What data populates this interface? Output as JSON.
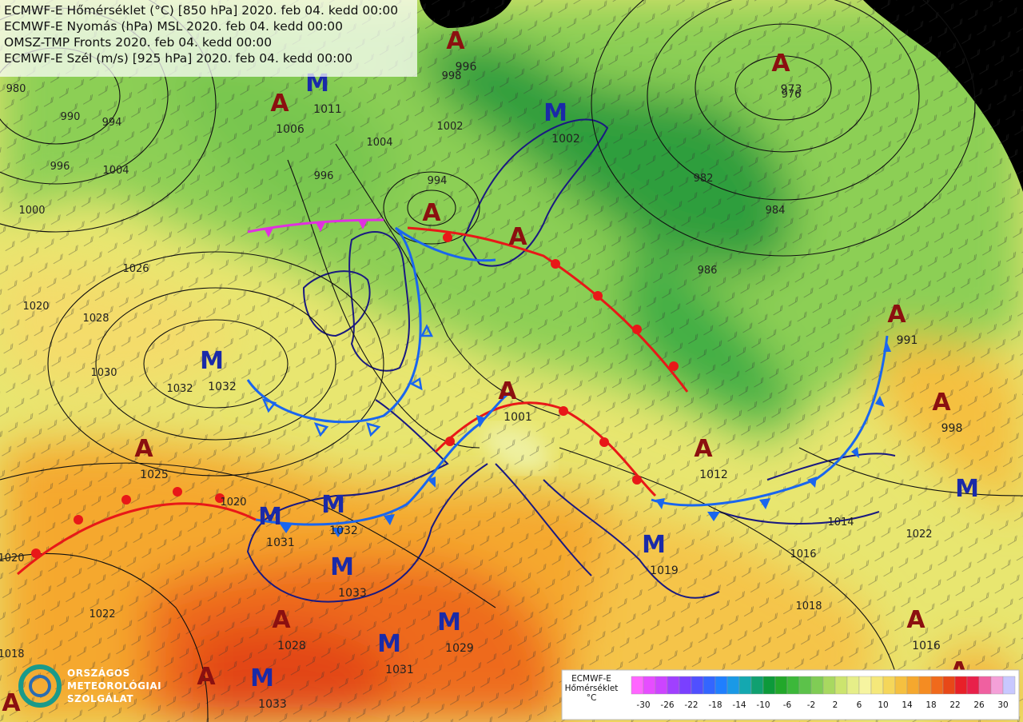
{
  "header": {
    "lines": [
      "ECMWF-E Hőmérséklet (°C) [850 hPa] 2020. feb 04. kedd 00:00",
      "ECMWF-E Nyomás (hPa) MSL 2020. feb 04. kedd 00:00",
      "OMSZ-TMP Fronts 2020. feb 04. kedd 00:00",
      "ECMWF-E Szél (m/s) [925 hPa] 2020. feb 04. kedd 00:00"
    ]
  },
  "centers": [
    {
      "letter": "A",
      "value": 996
    },
    {
      "letter": "M",
      "value": 1011
    },
    {
      "letter": "A",
      "value": 1006
    },
    {
      "letter": "M",
      "value": 1002
    },
    {
      "letter": "A",
      "value": 973
    },
    {
      "letter": "A"
    },
    {
      "letter": "A"
    },
    {
      "letter": "M",
      "value": 1032
    },
    {
      "letter": "A",
      "value": 1001
    },
    {
      "letter": "A",
      "value": 991
    },
    {
      "letter": "A",
      "value": 998
    },
    {
      "letter": "A",
      "value": 1025
    },
    {
      "letter": "A",
      "value": 1012
    },
    {
      "letter": "M",
      "value": 1031
    },
    {
      "letter": "M",
      "value": 1032
    },
    {
      "letter": "M"
    },
    {
      "letter": "M",
      "value": 1019
    },
    {
      "letter": "M",
      "value": 1033
    },
    {
      "letter": "A",
      "value": 1028
    },
    {
      "letter": "M",
      "value": 1029
    },
    {
      "letter": "M",
      "value": 1031
    },
    {
      "letter": "A",
      "value": 1016
    },
    {
      "letter": "A"
    },
    {
      "letter": "M",
      "value": 1033
    },
    {
      "letter": "A"
    },
    {
      "letter": "A"
    }
  ],
  "isobar_labels": [
    980,
    990,
    994,
    996,
    1000,
    1004,
    1026,
    1020,
    1028,
    1032,
    1030,
    1004,
    1002,
    996,
    994,
    998,
    984,
    982,
    976,
    986,
    1014,
    1016,
    1018,
    1022,
    1020,
    1020,
    1022,
    1018
  ],
  "legend": {
    "title": [
      "ECMWF-E",
      "Hőmérséklet",
      "°C"
    ],
    "ticks": [
      -30,
      -26,
      -22,
      -18,
      -14,
      -10,
      -6,
      -2,
      2,
      6,
      10,
      14,
      18,
      22,
      26,
      30
    ],
    "colors": [
      "#ff66ff",
      "#e64dff",
      "#cc44ff",
      "#a040ff",
      "#7a40ff",
      "#5050ff",
      "#3366ff",
      "#1f7fff",
      "#1a99e6",
      "#14a8b0",
      "#10a070",
      "#0d9a3a",
      "#22a82a",
      "#3cb83a",
      "#5cc24a",
      "#80cc55",
      "#a8d860",
      "#cce46e",
      "#e6ee88",
      "#f6f4a0",
      "#f5e87a",
      "#f5d65a",
      "#f5c040",
      "#f5a82e",
      "#f58c22",
      "#f06a1c",
      "#e84818",
      "#e82028",
      "#e8204a",
      "#f060a0",
      "#f4a0d8",
      "#c8c8ff"
    ]
  },
  "logo": [
    "ORSZÁGOS",
    "METEOROLÓGIAI",
    "SZOLGÁLAT"
  ]
}
